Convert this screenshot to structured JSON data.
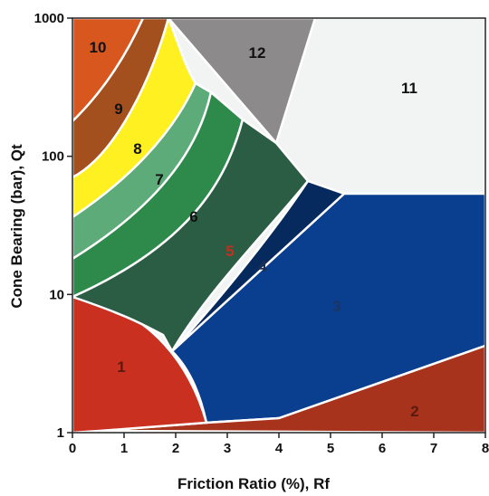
{
  "chart_data": {
    "type": "diagram",
    "xlabel": "Friction Ratio (%), Rf",
    "ylabel": "Cone Bearing (bar), Qt",
    "x_ticks": [
      "0",
      "1",
      "2",
      "3",
      "4",
      "5",
      "6",
      "7",
      "8"
    ],
    "y_ticks": [
      "1",
      "10",
      "100",
      "1000"
    ],
    "xlim": [
      0,
      8
    ],
    "ylim": [
      1,
      1000
    ],
    "y_scale": "log",
    "zones": [
      {
        "label": "1",
        "color": "#c9301f"
      },
      {
        "label": "2",
        "color": "#a8331c"
      },
      {
        "label": "3",
        "color": "#0a3e8e"
      },
      {
        "label": "4",
        "color": "#072a5e"
      },
      {
        "label": "5",
        "color": "#2b5d44"
      },
      {
        "label": "6",
        "color": "#2e8a4b"
      },
      {
        "label": "7",
        "color": "#5cab78"
      },
      {
        "label": "8",
        "color": "#fff021"
      },
      {
        "label": "9",
        "color": "#a4501e"
      },
      {
        "label": "10",
        "color": "#d8571e"
      },
      {
        "label": "11",
        "color": "#f2f4f4"
      },
      {
        "label": "12",
        "color": "#8d8a8c"
      }
    ]
  }
}
